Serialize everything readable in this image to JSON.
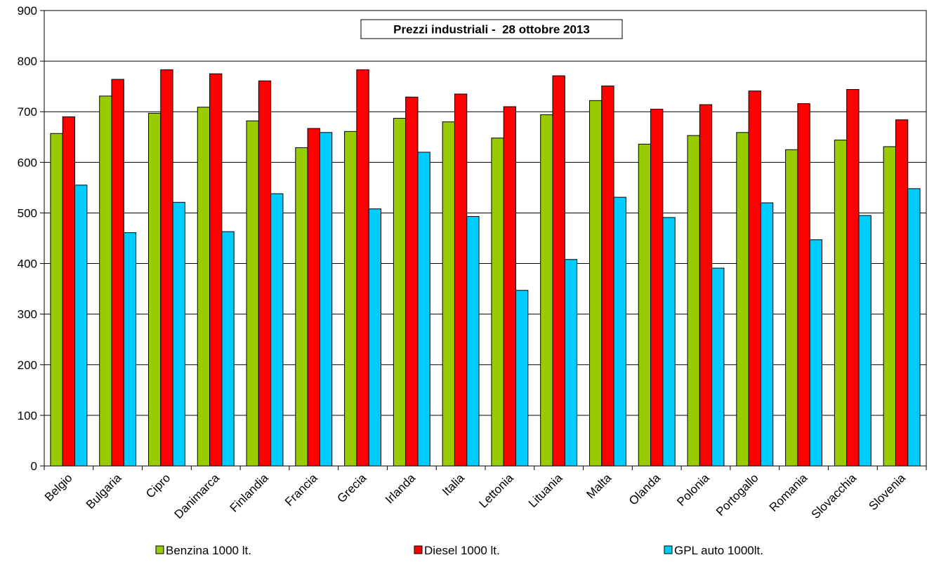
{
  "chart_data": {
    "type": "bar",
    "title": "Prezzi industriali -  28 ottobre 2013",
    "xlabel": "",
    "ylabel": "",
    "ylim": [
      0,
      900
    ],
    "yticks": [
      "0",
      "100",
      "200",
      "300",
      "400",
      "500",
      "600",
      "700",
      "800",
      "900"
    ],
    "grid": true,
    "legend_position": "bottom",
    "categories": [
      "Belgio",
      "Bulgaria",
      "Cipro",
      "Danimarca",
      "Finlandia",
      "Francia",
      "Grecia",
      "Irlanda",
      "Italia",
      "Lettonia",
      "Lituania",
      "Malta",
      "Olanda",
      "Polonia",
      "Portogallo",
      "Romania",
      "Slovacchia",
      "Slovenia"
    ],
    "series": [
      {
        "name": "Benzina 1000 lt.",
        "color": "#99cc00",
        "values": [
          657,
          731,
          697,
          709,
          682,
          629,
          661,
          687,
          680,
          648,
          694,
          722,
          636,
          653,
          659,
          625,
          644,
          631
        ]
      },
      {
        "name": "Diesel 1000 lt.",
        "color": "#ff0000",
        "values": [
          690,
          764,
          783,
          775,
          761,
          667,
          783,
          729,
          735,
          710,
          771,
          751,
          705,
          714,
          741,
          716,
          744,
          684
        ]
      },
      {
        "name": "GPL auto 1000lt.",
        "color": "#00ccff",
        "values": [
          555,
          461,
          521,
          463,
          538,
          659,
          508,
          620,
          493,
          347,
          408,
          531,
          491,
          391,
          520,
          447,
          495,
          548
        ]
      }
    ]
  }
}
